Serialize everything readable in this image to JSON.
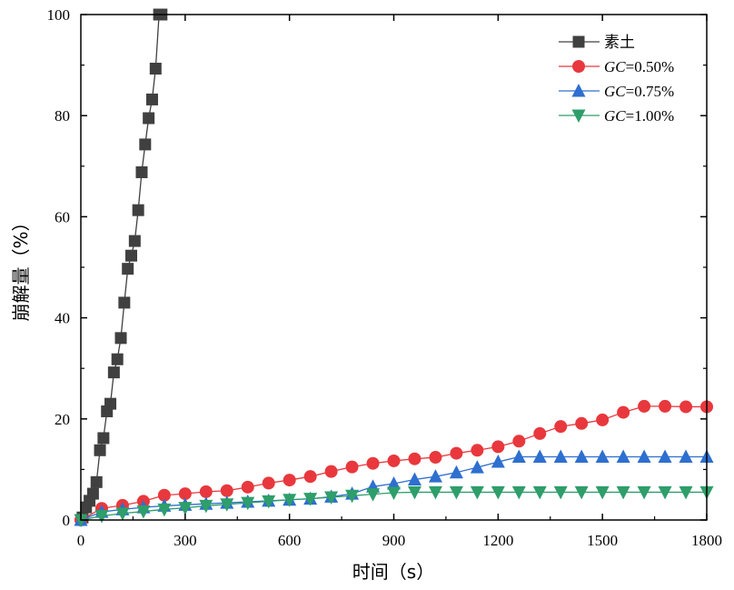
{
  "chart_data": {
    "type": "line",
    "title": "",
    "xlabel": "时间（s）",
    "ylabel": "崩解量（%）",
    "xlim": [
      0,
      1800
    ],
    "ylim": [
      0,
      100
    ],
    "xticks": [
      "0",
      "300",
      "600",
      "900",
      "1200",
      "1500",
      "1800"
    ],
    "yticks": [
      "0",
      "20",
      "40",
      "60",
      "80",
      "100"
    ],
    "legend_position": "top-right",
    "series": [
      {
        "name": "素土",
        "legend_prefix": "",
        "legend_suffix": "素土",
        "marker": "square",
        "color": "#404040",
        "x": [
          5,
          15,
          25,
          35,
          45,
          55,
          65,
          75,
          85,
          95,
          105,
          115,
          125,
          135,
          145,
          155,
          165,
          175,
          185,
          195,
          205,
          215,
          225,
          232
        ],
        "y": [
          0.5,
          2.5,
          3.8,
          5.2,
          7.5,
          13.8,
          16.2,
          21.5,
          23,
          29.2,
          31.8,
          36,
          43,
          49.7,
          52.3,
          55.2,
          61.3,
          68.8,
          74.3,
          79.5,
          83.2,
          89.3,
          100,
          100
        ]
      },
      {
        "name": "GC=0.50%",
        "legend_prefix": "GC",
        "legend_suffix": "=0.50%",
        "marker": "circle",
        "color": "#e8383d",
        "x": [
          0,
          60,
          120,
          180,
          240,
          300,
          360,
          420,
          480,
          540,
          600,
          660,
          720,
          780,
          840,
          900,
          960,
          1020,
          1080,
          1140,
          1200,
          1260,
          1320,
          1380,
          1440,
          1500,
          1560,
          1620,
          1680,
          1740,
          1800
        ],
        "y": [
          0,
          2.3,
          2.9,
          3.7,
          4.9,
          5.2,
          5.6,
          5.8,
          6.5,
          7.3,
          7.9,
          8.6,
          9.6,
          10.5,
          11.2,
          11.7,
          12.1,
          12.4,
          13.2,
          13.8,
          14.5,
          15.6,
          17.1,
          18.5,
          19.1,
          19.8,
          21.3,
          22.5,
          22.5,
          22.4,
          22.4
        ]
      },
      {
        "name": "GC=0.75%",
        "legend_prefix": "GC",
        "legend_suffix": "=0.75%",
        "marker": "triangle-up",
        "color": "#2e6fcf",
        "x": [
          0,
          60,
          120,
          180,
          240,
          300,
          360,
          420,
          480,
          540,
          600,
          660,
          720,
          780,
          840,
          900,
          960,
          1020,
          1080,
          1140,
          1200,
          1260,
          1320,
          1380,
          1440,
          1500,
          1560,
          1620,
          1680,
          1740,
          1800
        ],
        "y": [
          0,
          1.6,
          2.1,
          2.5,
          2.8,
          3.0,
          3.2,
          3.4,
          3.6,
          3.8,
          4.0,
          4.2,
          4.6,
          5.2,
          6.6,
          7.2,
          8.0,
          8.6,
          9.4,
          10.4,
          11.5,
          12.5,
          12.5,
          12.5,
          12.5,
          12.5,
          12.5,
          12.5,
          12.5,
          12.5,
          12.5
        ]
      },
      {
        "name": "GC=1.00%",
        "legend_prefix": "GC",
        "legend_suffix": "=1.00%",
        "marker": "triangle-down",
        "color": "#2e9e6a",
        "x": [
          0,
          60,
          120,
          180,
          240,
          300,
          360,
          420,
          480,
          540,
          600,
          660,
          720,
          780,
          840,
          900,
          960,
          1020,
          1080,
          1140,
          1200,
          1260,
          1320,
          1380,
          1440,
          1500,
          1560,
          1620,
          1680,
          1740,
          1800
        ],
        "y": [
          0,
          0.8,
          1.3,
          1.7,
          2.1,
          2.4,
          2.8,
          3.1,
          3.4,
          3.7,
          4.0,
          4.2,
          4.5,
          4.8,
          5.1,
          5.4,
          5.5,
          5.5,
          5.5,
          5.5,
          5.5,
          5.5,
          5.5,
          5.5,
          5.5,
          5.5,
          5.5,
          5.5,
          5.5,
          5.5,
          5.5
        ]
      }
    ]
  }
}
